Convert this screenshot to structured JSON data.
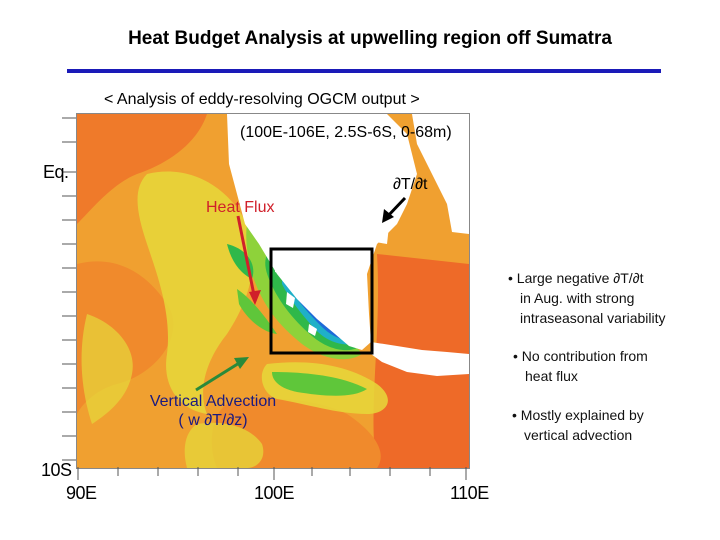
{
  "title": "Heat Budget Analysis at upwelling region off Sumatra",
  "subtitle": "< Analysis of eddy-resolving OGCM output >",
  "map": {
    "region_label": "(100E-106E, 2.5S-6S, 0-68m)",
    "axis": {
      "eq": "Eq.",
      "s10": "10S",
      "e90": "90E",
      "e100": "100E",
      "e110": "110E"
    },
    "annotations": {
      "dtdt": "∂T/∂t",
      "heat_flux": "Heat Flux",
      "vertical_advection_line1": "Vertical Advection",
      "vertical_advection_line2": "( w ∂T/∂z)"
    },
    "colors": {
      "heat_flux_arrow": "#d0202a",
      "vertical_advection_arrow": "#2a8a3a",
      "dtdt_arrow": "#000000",
      "box": "#000000"
    }
  },
  "bullets": {
    "b1_line1": "• Large negative ∂T/∂t",
    "b1_line2": "in Aug. with strong",
    "b1_line3": "intraseasonal variability",
    "b2_line1": "• No contribution from",
    "b2_line2": "heat flux",
    "b3_line1": "• Mostly explained by",
    "b3_line2": "vertical advection"
  }
}
